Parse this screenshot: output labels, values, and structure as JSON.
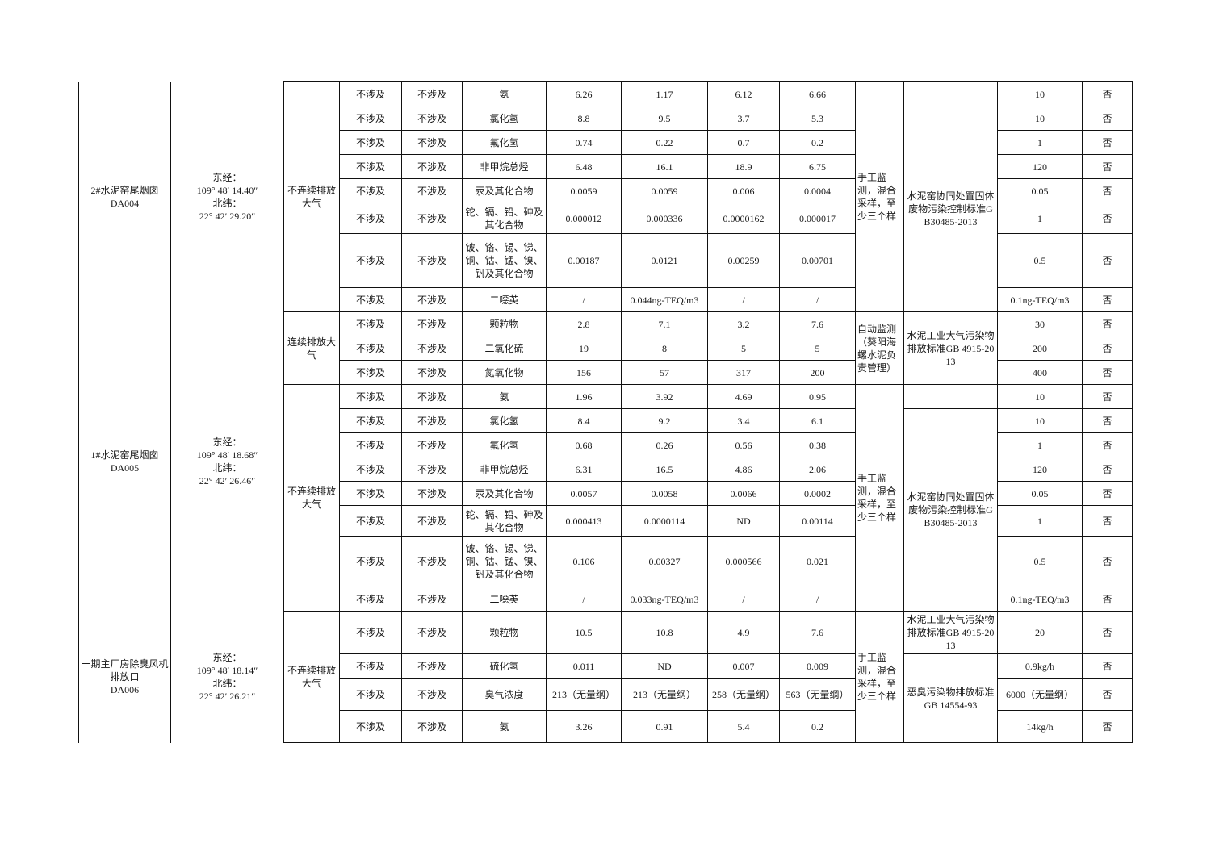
{
  "outlets": [
    {
      "name": "2#水泥窑尾烟囱\nDA004",
      "coords": "东经：\n109° 48′ 14.40″\n北纬：\n22° 42′ 29.20″"
    },
    {
      "name": "1#水泥窑尾烟囱\nDA005",
      "coords": "东经：\n109° 48′ 18.68″\n北纬：\n22° 42′ 26.46″"
    },
    {
      "name": "一期主厂房除臭风机排放口\nDA006",
      "coords": "东经：\n109° 48′ 18.14″\n北纬：\n22° 42′ 26.21″"
    }
  ],
  "emission_modes": {
    "discontinuous": "不连续排放大气",
    "continuous": "连续排放大气"
  },
  "monitoring_methods": {
    "manual": "手工监测，混合采样，至少三个样",
    "auto": "自动监测（葵阳海螺水泥负责管理）"
  },
  "standards": {
    "solid_waste": "水泥窑协同处置固体废物污染控制标准GB30485-2013",
    "cement_air": "水泥工业大气污染物排放标准GB 4915-2013",
    "odor": "恶臭污染物排放标准GB 14554-93"
  },
  "rows": [
    [
      "不涉及",
      "不涉及",
      "氨",
      "6.26",
      "1.17",
      "6.12",
      "6.66",
      "10",
      "否"
    ],
    [
      "不涉及",
      "不涉及",
      "氯化氢",
      "8.8",
      "9.5",
      "3.7",
      "5.3",
      "10",
      "否"
    ],
    [
      "不涉及",
      "不涉及",
      "氟化氢",
      "0.74",
      "0.22",
      "0.7",
      "0.2",
      "1",
      "否"
    ],
    [
      "不涉及",
      "不涉及",
      "非甲烷总烃",
      "6.48",
      "16.1",
      "18.9",
      "6.75",
      "120",
      "否"
    ],
    [
      "不涉及",
      "不涉及",
      "汞及其化合物",
      "0.0059",
      "0.0059",
      "0.006",
      "0.0004",
      "0.05",
      "否"
    ],
    [
      "不涉及",
      "不涉及",
      "铊、镉、铅、砷及其化合物",
      "0.000012",
      "0.000336",
      "0.0000162",
      "0.000017",
      "1",
      "否"
    ],
    [
      "不涉及",
      "不涉及",
      "铍、铬、锡、锑、铜、钴、锰、镍、钒及其化合物",
      "0.00187",
      "0.0121",
      "0.00259",
      "0.00701",
      "0.5",
      "否"
    ],
    [
      "不涉及",
      "不涉及",
      "二噁英",
      "/",
      "0.044ng-TEQ/m3",
      "/",
      "/",
      "0.1ng-TEQ/m3",
      "否"
    ],
    [
      "不涉及",
      "不涉及",
      "颗粒物",
      "2.8",
      "7.1",
      "3.2",
      "7.6",
      "30",
      "否"
    ],
    [
      "不涉及",
      "不涉及",
      "二氧化硫",
      "19",
      "8",
      "5",
      "5",
      "200",
      "否"
    ],
    [
      "不涉及",
      "不涉及",
      "氮氧化物",
      "156",
      "57",
      "317",
      "200",
      "400",
      "否"
    ],
    [
      "不涉及",
      "不涉及",
      "氨",
      "1.96",
      "3.92",
      "4.69",
      "0.95",
      "10",
      "否"
    ],
    [
      "不涉及",
      "不涉及",
      "氯化氢",
      "8.4",
      "9.2",
      "3.4",
      "6.1",
      "10",
      "否"
    ],
    [
      "不涉及",
      "不涉及",
      "氟化氢",
      "0.68",
      "0.26",
      "0.56",
      "0.38",
      "1",
      "否"
    ],
    [
      "不涉及",
      "不涉及",
      "非甲烷总烃",
      "6.31",
      "16.5",
      "4.86",
      "2.06",
      "120",
      "否"
    ],
    [
      "不涉及",
      "不涉及",
      "汞及其化合物",
      "0.0057",
      "0.0058",
      "0.0066",
      "0.0002",
      "0.05",
      "否"
    ],
    [
      "不涉及",
      "不涉及",
      "铊、镉、铅、砷及其化合物",
      "0.000413",
      "0.0000114",
      "ND",
      "0.00114",
      "1",
      "否"
    ],
    [
      "不涉及",
      "不涉及",
      "铍、铬、锡、锑、铜、钴、锰、镍、钒及其化合物",
      "0.106",
      "0.00327",
      "0.000566",
      "0.021",
      "0.5",
      "否"
    ],
    [
      "不涉及",
      "不涉及",
      "二噁英",
      "/",
      "0.033ng-TEQ/m3",
      "/",
      "/",
      "0.1ng-TEQ/m3",
      "否"
    ],
    [
      "不涉及",
      "不涉及",
      "颗粒物",
      "10.5",
      "10.8",
      "4.9",
      "7.6",
      "20",
      "否"
    ],
    [
      "不涉及",
      "不涉及",
      "硫化氢",
      "0.011",
      "ND",
      "0.007",
      "0.009",
      "0.9kg/h",
      "否"
    ],
    [
      "不涉及",
      "不涉及",
      "臭气浓度",
      "213（无量纲）",
      "213（无量纲）",
      "258（无量纲）",
      "563（无量纲）",
      "6000（无量纲）",
      "否"
    ],
    [
      "不涉及",
      "不涉及",
      "氨",
      "3.26",
      "0.91",
      "5.4",
      "0.2",
      "14kg/h",
      "否"
    ]
  ]
}
